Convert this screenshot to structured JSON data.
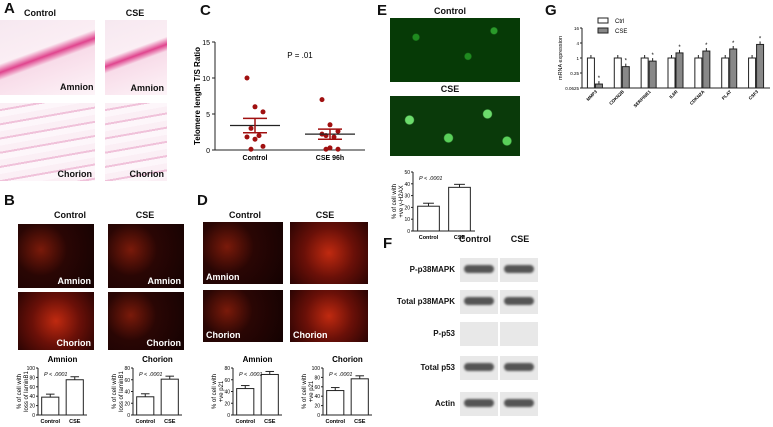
{
  "panels": {
    "A": "A",
    "B": "B",
    "C": "C",
    "D": "D",
    "E": "E",
    "F": "F",
    "G": "G"
  },
  "labels": {
    "control": "Control",
    "cse": "CSE",
    "amnion": "Amnion",
    "chorion": "Chorion"
  },
  "western": {
    "rows": [
      "P-p38MAPK",
      "Total p38MAPK",
      "P-p53",
      "Total p53",
      "Actin"
    ]
  },
  "chart_data": [
    {
      "id": "C",
      "type": "scatter",
      "ylabel": "Telomere length T/S Ratio",
      "ylim": [
        0,
        15
      ],
      "yticks": [
        0,
        5,
        10,
        15
      ],
      "categories": [
        "Control",
        "CSE 96h"
      ],
      "annotation": "P = .01",
      "series": [
        {
          "category": "Control",
          "values": [
            10,
            6,
            5.3,
            3,
            2,
            1.8,
            1.5,
            0.5,
            0.1
          ],
          "mean": 3.4,
          "sem": 1.0
        },
        {
          "category": "CSE 96h",
          "values": [
            7,
            3.5,
            2.6,
            2,
            1.8,
            2.2,
            0.3,
            0.1,
            0.1
          ],
          "mean": 2.2,
          "sem": 0.7
        }
      ],
      "color": "#a01010"
    },
    {
      "id": "G",
      "type": "bar",
      "scale": "log2",
      "ylabel": "mRNA expression",
      "yticks": [
        "0.0625",
        "0.25",
        "1",
        "4",
        "16"
      ],
      "ylim": [
        0.0625,
        16
      ],
      "categories": [
        "MMP3",
        "CDKN2B",
        "SERPINE1",
        "IL6R",
        "CDKN2A",
        "PLAT",
        "CSF3"
      ],
      "series": [
        {
          "name": "Ctrl",
          "values": [
            1,
            1,
            1,
            1,
            1,
            1,
            1
          ],
          "color": "#ffffff"
        },
        {
          "name": "CSE",
          "values": [
            0.09,
            0.45,
            0.75,
            1.6,
            1.9,
            2.3,
            3.5
          ],
          "color": "#888888"
        }
      ],
      "sig": "*",
      "legend": "top-left"
    },
    {
      "id": "B-amnion",
      "type": "bar",
      "title": "Amnion",
      "ylabel": "% of cell with loss of laminB1",
      "ylim": [
        0,
        100
      ],
      "yticks": [
        0,
        20,
        40,
        60,
        80,
        100
      ],
      "categories": [
        "Control",
        "CSE"
      ],
      "values": [
        38,
        75
      ],
      "annotation": "P < .0001"
    },
    {
      "id": "B-chorion",
      "type": "bar",
      "title": "Chorion",
      "ylabel": "% of cell with loss of laminB1",
      "ylim": [
        0,
        80
      ],
      "yticks": [
        0,
        20,
        40,
        60,
        80
      ],
      "categories": [
        "Control",
        "CSE"
      ],
      "values": [
        31,
        61
      ],
      "annotation": "P < .0001"
    },
    {
      "id": "D-amnion",
      "type": "bar",
      "title": "Amnion",
      "ylabel": "% of cell with +ve p21",
      "ylim": [
        0,
        80
      ],
      "yticks": [
        0,
        20,
        40,
        60,
        80
      ],
      "categories": [
        "Control",
        "CSE"
      ],
      "values": [
        45,
        69
      ],
      "annotation": "P < .0001"
    },
    {
      "id": "D-chorion",
      "type": "bar",
      "title": "Chorion",
      "ylabel": "% of cell with +ve p21",
      "ylim": [
        0,
        100
      ],
      "yticks": [
        0,
        20,
        40,
        60,
        80,
        100
      ],
      "categories": [
        "Control",
        "CSE"
      ],
      "values": [
        52,
        77
      ],
      "annotation": "P < .0001"
    },
    {
      "id": "E",
      "type": "bar",
      "ylabel": "% of cell with +ve γ-H2AX",
      "ylim": [
        0,
        50
      ],
      "yticks": [
        0,
        10,
        20,
        30,
        40,
        50
      ],
      "categories": [
        "Control",
        "CSE"
      ],
      "values": [
        21,
        37
      ],
      "annotation": "P < .0001"
    }
  ]
}
